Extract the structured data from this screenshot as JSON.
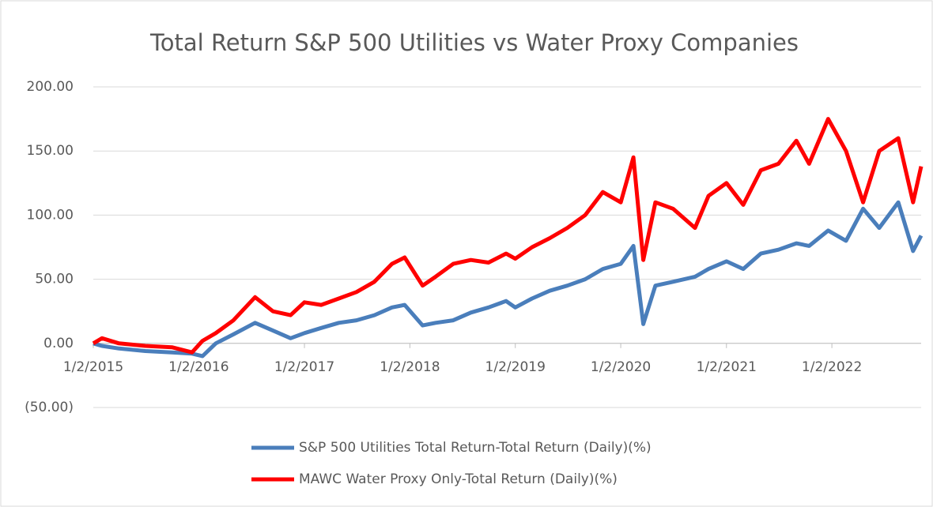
{
  "chart_data": {
    "type": "line",
    "title": "Total Return S&P 500 Utilities vs Water Proxy Companies",
    "x": [
      "2015-01-02",
      "2015-02-01",
      "2015-04-01",
      "2015-07-01",
      "2015-10-01",
      "2015-12-10",
      "2016-01-15",
      "2016-03-01",
      "2016-05-01",
      "2016-07-15",
      "2016-09-15",
      "2016-11-15",
      "2017-01-02",
      "2017-03-01",
      "2017-05-01",
      "2017-07-01",
      "2017-09-01",
      "2017-11-01",
      "2017-12-15",
      "2018-02-15",
      "2018-04-01",
      "2018-06-01",
      "2018-08-01",
      "2018-10-01",
      "2018-12-01",
      "2019-01-02",
      "2019-03-01",
      "2019-05-01",
      "2019-07-01",
      "2019-09-01",
      "2019-11-01",
      "2020-01-02",
      "2020-02-15",
      "2020-03-20",
      "2020-05-01",
      "2020-07-01",
      "2020-09-15",
      "2020-11-01",
      "2021-01-02",
      "2021-03-01",
      "2021-05-01",
      "2021-07-01",
      "2021-09-01",
      "2021-10-15",
      "2021-12-20",
      "2022-02-20",
      "2022-04-20",
      "2022-06-15",
      "2022-08-20",
      "2022-10-10",
      "2022-11-07"
    ],
    "series": [
      {
        "name": "S&P 500 Utilities Total Return-Total Return (Daily)(%)",
        "color": "#4a7ebb",
        "values": [
          0,
          -2,
          -4,
          -6,
          -7,
          -8,
          -10,
          0,
          7,
          16,
          10,
          4,
          8,
          12,
          16,
          18,
          22,
          28,
          30,
          14,
          16,
          18,
          24,
          28,
          33,
          28,
          35,
          41,
          45,
          50,
          58,
          62,
          76,
          15,
          45,
          48,
          52,
          58,
          64,
          58,
          70,
          73,
          78,
          76,
          88,
          80,
          105,
          90,
          110,
          72,
          84
        ]
      },
      {
        "name": "MAWC Water Proxy Only-Total Return (Daily)(%)",
        "color": "#ff0000",
        "values": [
          0,
          4,
          0,
          -2,
          -3,
          -7,
          2,
          8,
          18,
          36,
          25,
          22,
          32,
          30,
          35,
          40,
          48,
          62,
          67,
          45,
          52,
          62,
          65,
          63,
          70,
          66,
          75,
          82,
          90,
          100,
          118,
          110,
          145,
          65,
          110,
          105,
          90,
          115,
          125,
          108,
          135,
          140,
          158,
          140,
          175,
          150,
          110,
          150,
          160,
          110,
          138
        ]
      }
    ],
    "xlim": [
      "2015-01-02",
      "2022-11-07"
    ],
    "xticks": [
      {
        "value": "2015-01-02",
        "label": "1/2/2015"
      },
      {
        "value": "2016-01-02",
        "label": "1/2/2016"
      },
      {
        "value": "2017-01-02",
        "label": "1/2/2017"
      },
      {
        "value": "2018-01-02",
        "label": "1/2/2018"
      },
      {
        "value": "2019-01-02",
        "label": "1/2/2019"
      },
      {
        "value": "2020-01-02",
        "label": "1/2/2020"
      },
      {
        "value": "2021-01-02",
        "label": "1/2/2021"
      },
      {
        "value": "2022-01-02",
        "label": "1/2/2022"
      }
    ],
    "ylim": [
      -50,
      200
    ],
    "yticks": [
      {
        "value": -50,
        "label": "(50.00)"
      },
      {
        "value": 0,
        "label": "0.00"
      },
      {
        "value": 50,
        "label": "50.00"
      },
      {
        "value": 100,
        "label": "100.00"
      },
      {
        "value": 150,
        "label": "150.00"
      },
      {
        "value": 200,
        "label": "200.00"
      }
    ],
    "grid": true,
    "legend": "bottom"
  }
}
